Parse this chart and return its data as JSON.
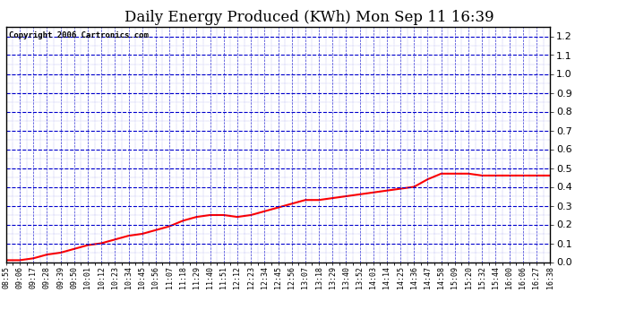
{
  "title": "Daily Energy Produced (KWh) Mon Sep 11 16:39",
  "copyright": "Copyright 2006 Cartronics.com",
  "plot_bg_color": "#ffffff",
  "fig_bg_color": "#ffffff",
  "grid_color": "#0000cc",
  "line_color": "red",
  "title_color": "black",
  "copyright_color": "black",
  "ylim": [
    0.0,
    1.25
  ],
  "yticks": [
    0.0,
    0.1,
    0.2,
    0.3,
    0.4,
    0.5,
    0.6,
    0.7,
    0.8,
    0.9,
    1.0,
    1.1,
    1.2
  ],
  "x_labels": [
    "08:55",
    "09:06",
    "09:17",
    "09:28",
    "09:39",
    "09:50",
    "10:01",
    "10:12",
    "10:23",
    "10:34",
    "10:45",
    "10:56",
    "11:07",
    "11:18",
    "11:29",
    "11:40",
    "11:51",
    "12:12",
    "12:23",
    "12:34",
    "12:45",
    "12:56",
    "13:07",
    "13:18",
    "13:29",
    "13:40",
    "13:52",
    "14:03",
    "14:14",
    "14:25",
    "14:36",
    "14:47",
    "14:58",
    "15:09",
    "15:20",
    "15:32",
    "15:44",
    "16:00",
    "16:06",
    "16:27",
    "16:38"
  ],
  "y_values": [
    0.01,
    0.01,
    0.02,
    0.04,
    0.05,
    0.07,
    0.09,
    0.1,
    0.12,
    0.14,
    0.15,
    0.17,
    0.19,
    0.22,
    0.24,
    0.25,
    0.25,
    0.24,
    0.25,
    0.27,
    0.29,
    0.31,
    0.33,
    0.33,
    0.34,
    0.35,
    0.36,
    0.37,
    0.38,
    0.39,
    0.4,
    0.44,
    0.47,
    0.47,
    0.47,
    0.46,
    0.46,
    0.46,
    0.46,
    0.46,
    0.46
  ],
  "title_fontsize": 12,
  "copyright_fontsize": 6.5,
  "tick_fontsize": 6,
  "ytick_fontsize": 8
}
